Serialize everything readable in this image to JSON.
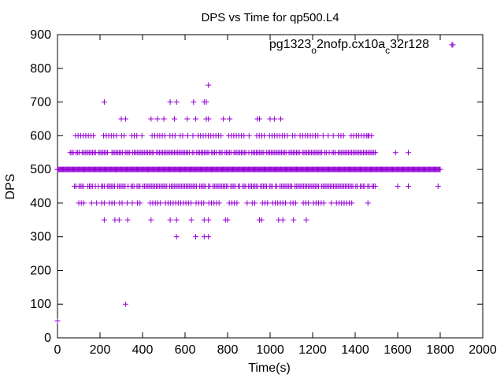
{
  "chart_data": {
    "type": "scatter",
    "title": "DPS vs Time for qp500.L4",
    "xlabel": "Time(s)",
    "ylabel": "DPS",
    "xlim": [
      0,
      2000
    ],
    "ylim": [
      0,
      900
    ],
    "xticks": [
      "0",
      "200",
      "400",
      "600",
      "800",
      "1000",
      "1200",
      "1400",
      "1600",
      "1800",
      "2000"
    ],
    "yticks": [
      "0",
      "100",
      "200",
      "300",
      "400",
      "500",
      "600",
      "700",
      "800",
      "900"
    ],
    "grid": false,
    "legend_placement": "top-right",
    "color": "#9400d3",
    "series": [
      {
        "name": "pg1323_o2nofp.cx10a_c32r128",
        "name_parts": [
          "pg1323",
          "o",
          "2nofp.cx10a",
          "c",
          "32r128"
        ],
        "bands": [
          {
            "y": 500,
            "x_start": 0,
            "x_end": 1800,
            "step": 4
          },
          {
            "y": 550,
            "x_start": 60,
            "x_end": 1510,
            "step": 7
          },
          {
            "y": 450,
            "x_start": 80,
            "x_end": 1500,
            "step": 7
          },
          {
            "y": 600,
            "x_start": 85,
            "x_end": 1500,
            "step": 12
          },
          {
            "y": 400,
            "x_start": 100,
            "x_end": 1390,
            "step": 12
          }
        ],
        "points": [
          [
            0,
            50
          ],
          [
            320,
            100
          ],
          [
            1855,
            870
          ],
          [
            1590,
            550
          ],
          [
            1650,
            550
          ],
          [
            1650,
            450
          ],
          [
            1600,
            450
          ],
          [
            1460,
            400
          ],
          [
            1460,
            600
          ],
          [
            1790,
            450
          ],
          [
            710,
            750
          ],
          [
            220,
            700
          ],
          [
            530,
            700
          ],
          [
            560,
            700
          ],
          [
            640,
            700
          ],
          [
            690,
            700
          ],
          [
            700,
            700
          ],
          [
            300,
            650
          ],
          [
            320,
            650
          ],
          [
            440,
            650
          ],
          [
            470,
            650
          ],
          [
            500,
            650
          ],
          [
            550,
            650
          ],
          [
            610,
            650
          ],
          [
            650,
            650
          ],
          [
            700,
            650
          ],
          [
            710,
            650
          ],
          [
            780,
            650
          ],
          [
            810,
            650
          ],
          [
            940,
            650
          ],
          [
            950,
            650
          ],
          [
            1000,
            650
          ],
          [
            1020,
            650
          ],
          [
            1050,
            650
          ],
          [
            220,
            350
          ],
          [
            270,
            350
          ],
          [
            290,
            350
          ],
          [
            330,
            350
          ],
          [
            440,
            350
          ],
          [
            530,
            350
          ],
          [
            560,
            350
          ],
          [
            630,
            350
          ],
          [
            690,
            350
          ],
          [
            710,
            350
          ],
          [
            790,
            350
          ],
          [
            800,
            350
          ],
          [
            950,
            350
          ],
          [
            960,
            350
          ],
          [
            1040,
            350
          ],
          [
            1060,
            350
          ],
          [
            1110,
            350
          ],
          [
            1170,
            350
          ],
          [
            560,
            300
          ],
          [
            650,
            300
          ],
          [
            690,
            300
          ],
          [
            710,
            300
          ]
        ]
      }
    ]
  }
}
